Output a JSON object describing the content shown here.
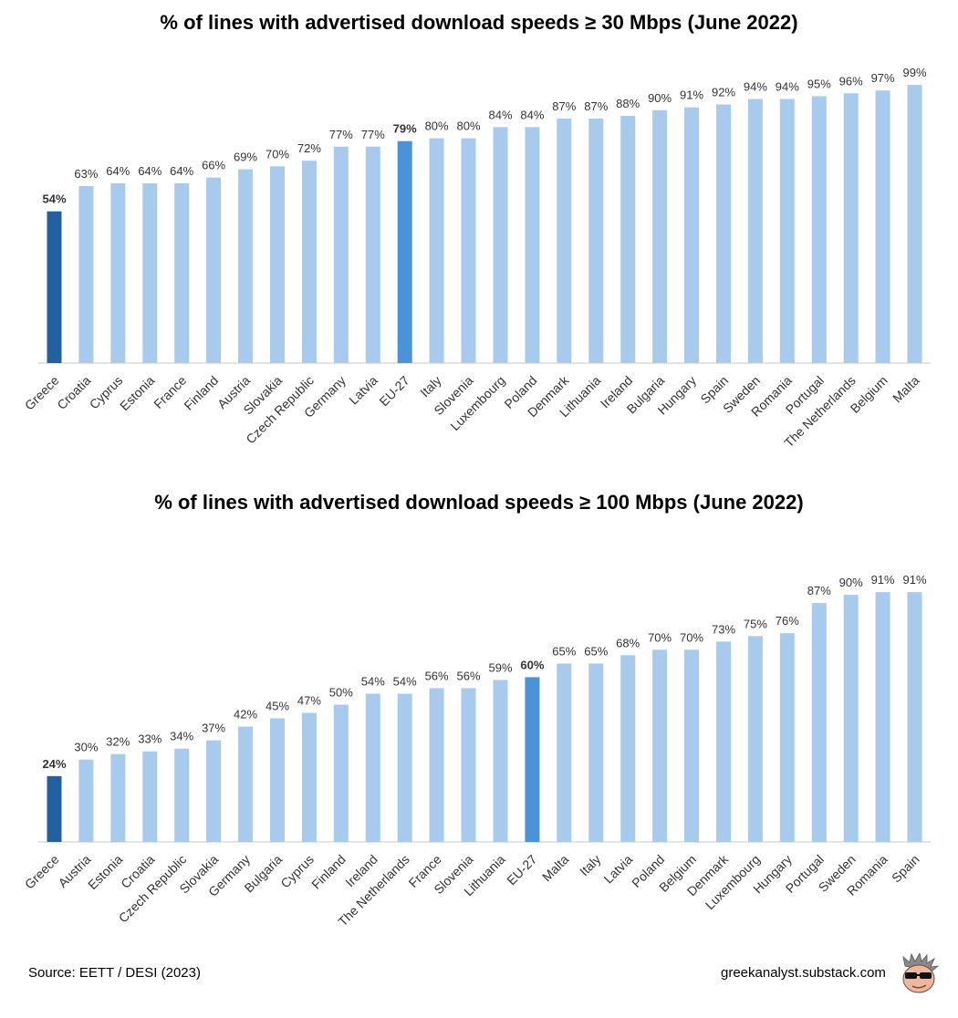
{
  "colors": {
    "greece": "#22609e",
    "eu27": "#4a93d6",
    "other": "#a8caec",
    "axis": "#c8c8c8",
    "text": "#333333"
  },
  "chart_data": [
    {
      "type": "bar",
      "title": "% of lines with advertised download speeds ≥ 30 Mbps (June 2022)",
      "xlabel": "",
      "ylabel": "",
      "ylim": [
        0,
        100
      ],
      "grid": false,
      "highlight": {
        "Greece": "greece",
        "EU-27": "eu27"
      },
      "categories": [
        "Greece",
        "Croatia",
        "Cyprus",
        "Estonia",
        "France",
        "Finland",
        "Austria",
        "Slovakia",
        "Czech Republic",
        "Germany",
        "Latvia",
        "EU-27",
        "Italy",
        "Slovenia",
        "Luxembourg",
        "Poland",
        "Denmark",
        "Lithuania",
        "Ireland",
        "Bulgaria",
        "Hungary",
        "Spain",
        "Sweden",
        "Romania",
        "Portugal",
        "The Netherlands",
        "Belgium",
        "Malta"
      ],
      "values": [
        54,
        63,
        64,
        64,
        64,
        66,
        69,
        70,
        72,
        77,
        77,
        79,
        80,
        80,
        84,
        84,
        87,
        87,
        88,
        90,
        91,
        92,
        94,
        94,
        95,
        96,
        97,
        99
      ],
      "data_labels": [
        "54%",
        "63%",
        "64%",
        "64%",
        "64%",
        "66%",
        "69%",
        "70%",
        "72%",
        "77%",
        "77%",
        "79%",
        "80%",
        "80%",
        "84%",
        "84%",
        "87%",
        "87%",
        "88%",
        "90%",
        "91%",
        "92%",
        "94%",
        "94%",
        "95%",
        "96%",
        "97%",
        "99%"
      ]
    },
    {
      "type": "bar",
      "title": "% of lines with advertised download speeds ≥ 100 Mbps (June 2022)",
      "xlabel": "",
      "ylabel": "",
      "ylim": [
        0,
        100
      ],
      "grid": false,
      "highlight": {
        "Greece": "greece",
        "EU-27": "eu27"
      },
      "categories": [
        "Greece",
        "Austria",
        "Estonia",
        "Croatia",
        "Czech Republic",
        "Slovakia",
        "Germany",
        "Bulgaria",
        "Cyprus",
        "Finland",
        "Ireland",
        "The Netherlands",
        "France",
        "Slovenia",
        "Lithuania",
        "EU-27",
        "Malta",
        "Italy",
        "Latvia",
        "Poland",
        "Belgium",
        "Denmark",
        "Luxembourg",
        "Hungary",
        "Portugal",
        "Sweden",
        "Romania",
        "Spain"
      ],
      "values": [
        24,
        30,
        32,
        33,
        34,
        37,
        42,
        45,
        47,
        50,
        54,
        54,
        56,
        56,
        59,
        60,
        65,
        65,
        68,
        70,
        70,
        73,
        75,
        76,
        87,
        90,
        91,
        91
      ],
      "data_labels": [
        "24%",
        "30%",
        "32%",
        "33%",
        "34%",
        "37%",
        "42%",
        "45%",
        "47%",
        "50%",
        "54%",
        "54%",
        "56%",
        "56%",
        "59%",
        "60%",
        "65%",
        "65%",
        "68%",
        "70%",
        "70%",
        "73%",
        "75%",
        "76%",
        "87%",
        "90%",
        "91%",
        "91%"
      ]
    }
  ],
  "footer": {
    "source": "Source: EETT / DESI (2023)",
    "site": "greekanalyst.substack.com"
  },
  "logo": {
    "icon": "cartoon-face-sunglasses-icon"
  }
}
